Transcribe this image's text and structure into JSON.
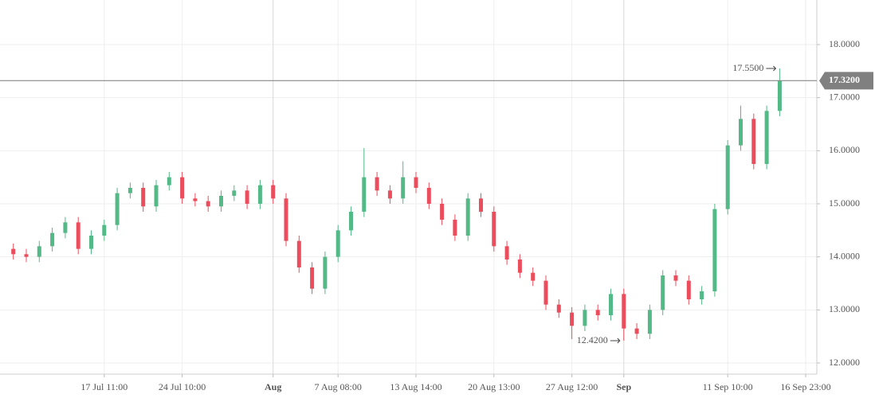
{
  "chart_data": {
    "type": "candlestick",
    "categories": [
      null,
      null,
      null,
      null,
      null,
      null,
      null,
      "17 Jul 11:00",
      null,
      null,
      null,
      null,
      null,
      "24 Jul 10:00",
      null,
      null,
      null,
      null,
      null,
      null,
      "Aug",
      null,
      null,
      null,
      null,
      "7 Aug 08:00",
      null,
      null,
      null,
      null,
      null,
      "13 Aug 14:00",
      null,
      null,
      null,
      null,
      null,
      "20 Aug 13:00",
      null,
      null,
      null,
      null,
      null,
      "27 Aug 12:00",
      null,
      null,
      null,
      "Sep",
      null,
      null,
      null,
      null,
      null,
      null,
      null,
      "11 Sep 10:00",
      null,
      null,
      null,
      null,
      null,
      "16 Sep 23:00"
    ],
    "open": [
      14.15,
      14.05,
      14.0,
      14.2,
      14.45,
      14.65,
      14.15,
      14.4,
      14.6,
      15.2,
      15.3,
      14.95,
      15.35,
      15.5,
      15.1,
      15.05,
      14.95,
      15.15,
      15.25,
      15.0,
      15.35,
      15.1,
      14.3,
      13.8,
      13.4,
      14.0,
      14.5,
      14.85,
      15.5,
      15.25,
      15.1,
      15.5,
      15.3,
      15.0,
      14.7,
      14.4,
      15.1,
      14.85,
      14.2,
      13.95,
      13.7,
      13.55,
      13.1,
      12.95,
      12.7,
      13.0,
      12.9,
      13.3,
      12.65,
      12.55,
      13.0,
      13.65,
      13.55,
      13.2,
      13.35,
      14.9,
      16.1,
      16.6,
      15.75,
      16.75,
      null,
      null
    ],
    "high": [
      14.25,
      14.15,
      14.3,
      14.55,
      14.75,
      14.75,
      14.5,
      14.7,
      15.3,
      15.4,
      15.4,
      15.45,
      15.6,
      15.6,
      15.2,
      15.15,
      15.25,
      15.35,
      15.35,
      15.45,
      15.45,
      15.2,
      14.4,
      13.9,
      14.1,
      14.6,
      14.95,
      16.05,
      15.6,
      15.35,
      15.8,
      15.6,
      15.4,
      15.1,
      14.8,
      15.2,
      15.2,
      14.95,
      14.3,
      14.05,
      13.8,
      13.65,
      13.2,
      13.05,
      13.1,
      13.1,
      13.4,
      13.4,
      12.75,
      13.1,
      13.75,
      13.75,
      13.65,
      13.45,
      15.0,
      16.2,
      16.85,
      16.7,
      16.85,
      17.55,
      null,
      null
    ],
    "low": [
      13.95,
      13.9,
      13.9,
      14.1,
      14.35,
      14.05,
      14.05,
      14.3,
      14.5,
      15.1,
      14.85,
      14.85,
      15.25,
      15.0,
      14.95,
      14.85,
      14.85,
      15.05,
      14.9,
      14.9,
      15.0,
      14.2,
      13.7,
      13.3,
      13.3,
      13.9,
      14.4,
      14.75,
      15.15,
      15.0,
      15.0,
      15.2,
      14.9,
      14.6,
      14.3,
      14.3,
      14.75,
      14.1,
      13.85,
      13.6,
      13.45,
      13.0,
      12.85,
      12.45,
      12.6,
      12.8,
      12.8,
      12.42,
      12.45,
      12.45,
      12.9,
      13.45,
      13.1,
      13.1,
      13.25,
      14.8,
      16.0,
      15.65,
      15.65,
      16.65,
      null,
      null
    ],
    "close": [
      14.05,
      14.0,
      14.2,
      14.45,
      14.65,
      14.15,
      14.4,
      14.6,
      15.2,
      15.3,
      14.95,
      15.35,
      15.5,
      15.1,
      15.05,
      14.95,
      15.15,
      15.25,
      15.0,
      15.35,
      15.1,
      14.3,
      13.8,
      13.4,
      14.0,
      14.5,
      14.85,
      15.5,
      15.25,
      15.1,
      15.5,
      15.3,
      15.0,
      14.7,
      14.4,
      15.1,
      14.85,
      14.2,
      13.95,
      13.7,
      13.55,
      13.1,
      12.95,
      12.7,
      13.0,
      12.9,
      13.3,
      12.65,
      12.55,
      13.0,
      13.65,
      13.55,
      13.2,
      13.35,
      14.9,
      16.1,
      16.6,
      15.75,
      16.75,
      17.32,
      null,
      null
    ],
    "up_color": "#53b987",
    "down_color": "#eb4d5c",
    "ylim": [
      11.79,
      18.84
    ],
    "yticks": [
      {
        "value": 12,
        "label": "12.0000"
      },
      {
        "value": 13,
        "label": "13.0000"
      },
      {
        "value": 14,
        "label": "14.0000"
      },
      {
        "value": 15,
        "label": "15.0000"
      },
      {
        "value": 16,
        "label": "16.0000"
      },
      {
        "value": 17,
        "label": "17.0000"
      },
      {
        "value": 18,
        "label": "18.0000"
      }
    ],
    "grid": true,
    "last_price": {
      "value": 17.32,
      "label": "17.3200"
    },
    "annotations": [
      {
        "value": 17.55,
        "label": "17.5500",
        "index": 59
      },
      {
        "value": 12.42,
        "label": "12.4200",
        "index": 47
      }
    ]
  }
}
